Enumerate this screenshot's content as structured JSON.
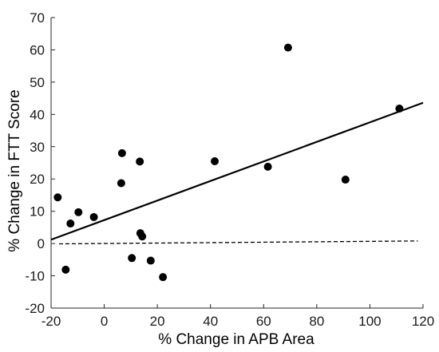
{
  "chart_data": {
    "type": "scatter",
    "xlabel": "% Change in APB Area",
    "ylabel": "% Change in FTT Score",
    "xlim": [
      -20,
      120
    ],
    "ylim": [
      -20,
      70
    ],
    "xticks": [
      -20,
      0,
      20,
      40,
      60,
      80,
      100,
      120
    ],
    "yticks": [
      -20,
      -10,
      0,
      10,
      20,
      30,
      40,
      50,
      60,
      70
    ],
    "x_tick_labels": [
      "-20",
      "0",
      "20",
      "40",
      "60",
      "80",
      "100",
      "120"
    ],
    "y_tick_labels": [
      "-20",
      "-10",
      "0",
      "10",
      "20",
      "30",
      "40",
      "50",
      "60",
      "70"
    ],
    "grid": false,
    "series": [
      {
        "type": "scatter",
        "color": "#000000",
        "points": [
          {
            "x": -17.5,
            "y": 14.3
          },
          {
            "x": -14.5,
            "y": -8.1
          },
          {
            "x": -12.7,
            "y": 6.2
          },
          {
            "x": -9.7,
            "y": 9.7
          },
          {
            "x": -3.9,
            "y": 8.2
          },
          {
            "x": 6.4,
            "y": 18.7
          },
          {
            "x": 6.7,
            "y": 28.0
          },
          {
            "x": 10.4,
            "y": -4.5
          },
          {
            "x": 13.4,
            "y": 25.4
          },
          {
            "x": 13.6,
            "y": 3.2
          },
          {
            "x": 14.3,
            "y": 2.2
          },
          {
            "x": 17.5,
            "y": -5.3
          },
          {
            "x": 22.1,
            "y": -10.4
          },
          {
            "x": 41.6,
            "y": 25.5
          },
          {
            "x": 61.6,
            "y": 23.8
          },
          {
            "x": 69.2,
            "y": 60.7
          },
          {
            "x": 90.8,
            "y": 19.8
          },
          {
            "x": 111.1,
            "y": 41.8
          }
        ]
      },
      {
        "type": "line",
        "style": "solid",
        "color": "#000000",
        "x": [
          -20,
          120
        ],
        "y": [
          1.2,
          43.6
        ]
      },
      {
        "type": "line",
        "style": "dashed",
        "color": "#000000",
        "x": [
          -17,
          118
        ],
        "y": [
          -0.1,
          0.8
        ]
      }
    ]
  }
}
